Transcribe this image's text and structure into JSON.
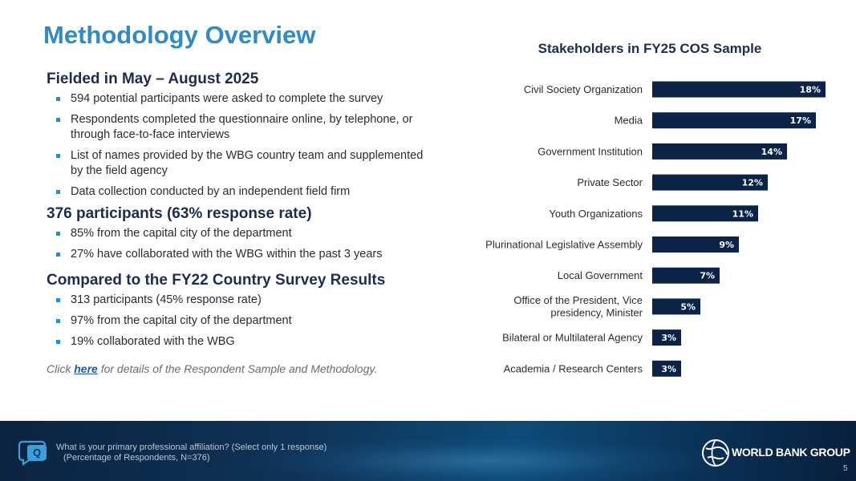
{
  "title": "Methodology Overview",
  "left": {
    "section1": {
      "heading": "Fielded in May – August 2025",
      "bullets": [
        "594 potential participants were asked to complete the survey",
        "Respondents completed the questionnaire online, by telephone, or through face-to-face interviews",
        "List of names provided by the WBG country team and supplemented by the field agency",
        "Data collection conducted by an independent field firm"
      ]
    },
    "section2": {
      "heading": "376 participants (63% response rate)",
      "bullets": [
        "85% from the capital city of the department",
        "27% have collaborated with the WBG within the past 3 years"
      ]
    },
    "section3": {
      "heading": "Compared to the FY22 Country Survey Results",
      "bullets": [
        "313 participants (45% response rate)",
        "97% from the capital city of the department",
        "19% collaborated with the WBG"
      ]
    },
    "note": {
      "prefix": "Click ",
      "link": "here",
      "suffix": " for details of the Respondent Sample and Methodology."
    }
  },
  "chart_data": {
    "type": "bar",
    "orientation": "horizontal",
    "title": "Stakeholders in FY25 COS Sample",
    "categories": [
      "Civil Society Organization",
      "Media",
      "Government Institution",
      "Private Sector",
      "Youth Organizations",
      "Plurinational Legislative Assembly",
      "Local Government",
      "Office of the President, Vice presidency, Minister",
      "Bilateral or Multilateral Agency",
      "Academia / Research Centers"
    ],
    "category_lines": [
      [
        "Civil Society Organization"
      ],
      [
        "Media"
      ],
      [
        "Government Institution"
      ],
      [
        "Private Sector"
      ],
      [
        "Youth Organizations"
      ],
      [
        "Plurinational Legislative Assembly"
      ],
      [
        "Local Government"
      ],
      [
        "Office of the President, Vice",
        "presidency, Minister"
      ],
      [
        "Bilateral or Multilateral Agency"
      ],
      [
        "Academia / Research Centers"
      ]
    ],
    "values": [
      18,
      17,
      14,
      12,
      11,
      9,
      7,
      5,
      3,
      3
    ],
    "value_labels": [
      "18%",
      "17%",
      "14%",
      "12%",
      "11%",
      "9%",
      "7%",
      "5%",
      "3%",
      "3%"
    ],
    "unit": "%",
    "bar_color": "#0a2347",
    "xlim": [
      0,
      18
    ],
    "grid": false,
    "legend": "none"
  },
  "footer": {
    "question": "What is your primary professional affiliation? (Select only 1 response)",
    "base": "(Percentage of Respondents, N=376)",
    "logo_text": "WORLD BANK GROUP",
    "page_number": "5"
  },
  "colors": {
    "title": "#2e8ac9",
    "heading": "#1e2d4f",
    "bullet": "#2e8ac9",
    "bar": "#0a2347",
    "footer_bg": "#0f3357"
  }
}
